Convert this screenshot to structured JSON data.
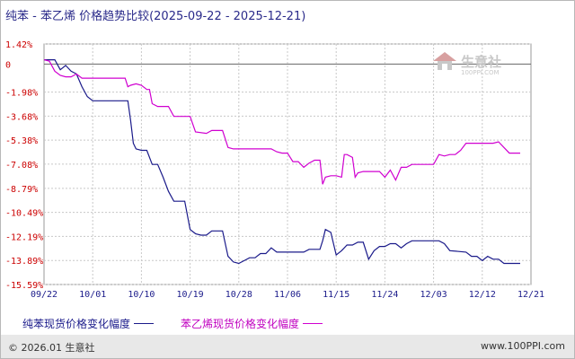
{
  "title": "纯苯 - 苯乙烯 价格趋势比较(2025-09-22 - 2025-12-21)",
  "watermark": {
    "name": "生意社",
    "url": "100PPI.COM"
  },
  "footer": {
    "copyright": "© 2026.01 生意社",
    "url": "www.100PPI.com"
  },
  "colors": {
    "series1": "#1a1a8a",
    "series2": "#d000d0",
    "grid": "#c8c8c8",
    "axis": "#555555",
    "tick_y": "#cc0000",
    "tick_x": "#1a1a8a"
  },
  "chart_data": {
    "type": "line",
    "title": "纯苯 - 苯乙烯 价格趋势比较(2025-09-22 - 2025-12-21)",
    "xlabel": "",
    "ylabel": "",
    "x_ticks": [
      "09/22",
      "10/01",
      "10/10",
      "10/19",
      "10/28",
      "11/06",
      "11/15",
      "11/24",
      "12/03",
      "12/12",
      "12/21"
    ],
    "y_ticks": [
      "1.42%",
      "0",
      "-1.98%",
      "-3.68%",
      "-5.38%",
      "-7.08%",
      "-8.79%",
      "-10.49%",
      "-12.19%",
      "-13.89%",
      "-15.59%"
    ],
    "y_tick_values": [
      1.42,
      0,
      -1.98,
      -3.68,
      -5.38,
      -7.08,
      -8.79,
      -10.49,
      -12.19,
      -13.89,
      -15.59
    ],
    "ylim": [
      -15.59,
      1.42
    ],
    "x_range_days": [
      0,
      90
    ],
    "grid": true,
    "legend_position": "bottom",
    "series": [
      {
        "name": "纯苯现货价格变化幅度",
        "points": [
          [
            0,
            0.3
          ],
          [
            2,
            0.3
          ],
          [
            3,
            -0.4
          ],
          [
            4,
            -0.1
          ],
          [
            5,
            -0.5
          ],
          [
            6,
            -0.7
          ],
          [
            7,
            -1.6
          ],
          [
            8,
            -2.3
          ],
          [
            9,
            -2.6
          ],
          [
            15,
            -2.6
          ],
          [
            15.5,
            -2.6
          ],
          [
            16,
            -4.0
          ],
          [
            16.5,
            -5.6
          ],
          [
            17,
            -6.0
          ],
          [
            18,
            -6.1
          ],
          [
            19,
            -6.1
          ],
          [
            20,
            -7.1
          ],
          [
            21,
            -7.1
          ],
          [
            22,
            -8.0
          ],
          [
            23,
            -9.0
          ],
          [
            24,
            -9.7
          ],
          [
            26,
            -9.7
          ],
          [
            27,
            -11.7
          ],
          [
            28,
            -12.0
          ],
          [
            29,
            -12.1
          ],
          [
            30,
            -12.1
          ],
          [
            31,
            -11.8
          ],
          [
            33,
            -11.8
          ],
          [
            34,
            -13.6
          ],
          [
            35,
            -14.0
          ],
          [
            36,
            -14.1
          ],
          [
            37,
            -13.9
          ],
          [
            38,
            -13.7
          ],
          [
            39,
            -13.7
          ],
          [
            40,
            -13.4
          ],
          [
            41,
            -13.4
          ],
          [
            42,
            -13.0
          ],
          [
            43,
            -13.3
          ],
          [
            48,
            -13.3
          ],
          [
            49,
            -13.1
          ],
          [
            51,
            -13.1
          ],
          [
            51.5,
            -12.5
          ],
          [
            52,
            -11.7
          ],
          [
            53,
            -11.9
          ],
          [
            54,
            -13.5
          ],
          [
            55,
            -13.2
          ],
          [
            56,
            -12.8
          ],
          [
            57,
            -12.8
          ],
          [
            58,
            -12.6
          ],
          [
            59,
            -12.6
          ],
          [
            60,
            -13.8
          ],
          [
            61,
            -13.2
          ],
          [
            62,
            -12.9
          ],
          [
            63,
            -12.9
          ],
          [
            64,
            -12.7
          ],
          [
            65,
            -12.7
          ],
          [
            66,
            -13.0
          ],
          [
            67,
            -12.7
          ],
          [
            68,
            -12.5
          ],
          [
            73,
            -12.5
          ],
          [
            74,
            -12.7
          ],
          [
            75,
            -13.2
          ],
          [
            78,
            -13.3
          ],
          [
            79,
            -13.6
          ],
          [
            80,
            -13.6
          ],
          [
            81,
            -13.9
          ],
          [
            82,
            -13.6
          ],
          [
            83,
            -13.8
          ],
          [
            84,
            -13.8
          ],
          [
            85,
            -14.1
          ],
          [
            88,
            -14.1
          ]
        ]
      },
      {
        "name": "苯乙烯现货价格变化幅度",
        "points": [
          [
            0,
            0.3
          ],
          [
            1,
            0.2
          ],
          [
            2,
            -0.5
          ],
          [
            3,
            -0.8
          ],
          [
            4,
            -0.9
          ],
          [
            5,
            -0.9
          ],
          [
            6,
            -0.7
          ],
          [
            7,
            -1.0
          ],
          [
            15,
            -1.0
          ],
          [
            15.5,
            -1.6
          ],
          [
            16,
            -1.5
          ],
          [
            17,
            -1.4
          ],
          [
            18,
            -1.5
          ],
          [
            19,
            -1.8
          ],
          [
            19.5,
            -1.8
          ],
          [
            20,
            -2.8
          ],
          [
            21,
            -3.0
          ],
          [
            22,
            -3.0
          ],
          [
            23,
            -3.0
          ],
          [
            24,
            -3.7
          ],
          [
            27,
            -3.7
          ],
          [
            28,
            -4.8
          ],
          [
            30,
            -4.9
          ],
          [
            31,
            -4.7
          ],
          [
            33,
            -4.7
          ],
          [
            34,
            -5.9
          ],
          [
            35,
            -6.0
          ],
          [
            42,
            -6.0
          ],
          [
            43,
            -6.2
          ],
          [
            44,
            -6.3
          ],
          [
            45,
            -6.3
          ],
          [
            46,
            -6.9
          ],
          [
            47,
            -6.9
          ],
          [
            48,
            -7.3
          ],
          [
            49,
            -7.0
          ],
          [
            50,
            -6.8
          ],
          [
            51,
            -6.8
          ],
          [
            51.5,
            -8.5
          ],
          [
            52,
            -8.0
          ],
          [
            53,
            -7.9
          ],
          [
            54,
            -7.9
          ],
          [
            55,
            -8.0
          ],
          [
            55.5,
            -6.4
          ],
          [
            56,
            -6.4
          ],
          [
            57,
            -6.6
          ],
          [
            57.5,
            -8.0
          ],
          [
            58,
            -7.7
          ],
          [
            59,
            -7.6
          ],
          [
            62,
            -7.6
          ],
          [
            63,
            -8.0
          ],
          [
            64,
            -7.5
          ],
          [
            65,
            -8.2
          ],
          [
            66,
            -7.3
          ],
          [
            67,
            -7.3
          ],
          [
            68,
            -7.1
          ],
          [
            72,
            -7.1
          ],
          [
            73,
            -6.4
          ],
          [
            74,
            -6.5
          ],
          [
            75,
            -6.4
          ],
          [
            76,
            -6.4
          ],
          [
            77,
            -6.1
          ],
          [
            78,
            -5.6
          ],
          [
            83,
            -5.6
          ],
          [
            84,
            -5.5
          ],
          [
            85,
            -5.9
          ],
          [
            86,
            -6.3
          ],
          [
            87,
            -6.3
          ],
          [
            88,
            -6.3
          ]
        ]
      }
    ]
  }
}
